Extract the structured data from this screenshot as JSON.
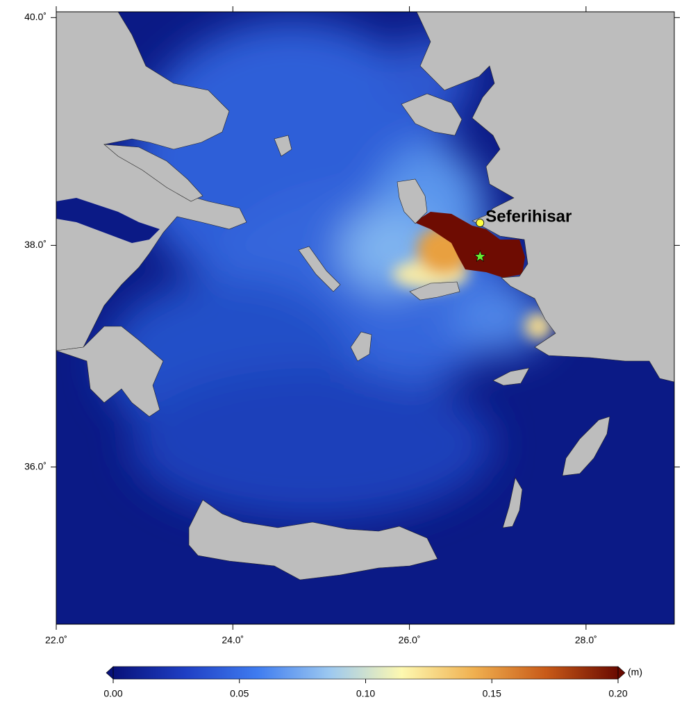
{
  "map": {
    "xlim": [
      22,
      29
    ],
    "ylim": [
      34.55,
      40.05
    ],
    "xticks": [
      {
        "value": 22,
        "label": "22.0˚"
      },
      {
        "value": 24,
        "label": "24.0˚"
      },
      {
        "value": 26,
        "label": "26.0˚"
      },
      {
        "value": 28,
        "label": "28.0˚"
      }
    ],
    "yticks": [
      {
        "value": 36,
        "label": "36.0˚"
      },
      {
        "value": 38,
        "label": "38.0˚"
      },
      {
        "value": 40,
        "label": "40.0˚"
      }
    ],
    "places": [
      {
        "name": "Seferihisar",
        "lon": 26.8,
        "lat": 38.2,
        "color": "#ffff40"
      }
    ],
    "epicenter": {
      "lon": 26.8,
      "lat": 37.9,
      "color": "#66ee33"
    },
    "colorbar": {
      "lim": [
        0,
        0.2
      ],
      "unit": "(m)",
      "ticks": [
        {
          "value": 0,
          "label": "0.00"
        },
        {
          "value": 0.05,
          "label": "0.05"
        },
        {
          "value": 0.1,
          "label": "0.10"
        },
        {
          "value": 0.15,
          "label": "0.15"
        },
        {
          "value": 0.2,
          "label": "0.20"
        }
      ],
      "colors": [
        "#08117a",
        "#1f3fc4",
        "#3f7cf0",
        "#9cc8f0",
        "#fdf8b0",
        "#f0b050",
        "#c85a18",
        "#6a0a00"
      ]
    }
  }
}
